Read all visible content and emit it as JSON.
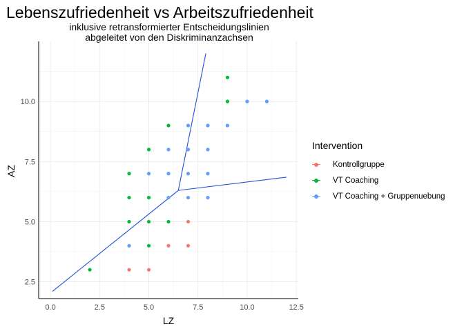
{
  "chart_data": {
    "type": "scatter",
    "title": "Lebenszufriedenheit vs Arbeitszufriedenheit",
    "subtitle_lines": [
      "inklusive retransformierter Entscheidungslinien",
      "abgeleitet von den Diskriminanzachsen"
    ],
    "xlabel": "LZ",
    "ylabel": "AZ",
    "xlim": [
      -0.6,
      12.6
    ],
    "ylim": [
      1.8,
      12.5
    ],
    "x_ticks": [
      0.0,
      2.5,
      5.0,
      7.5,
      10.0,
      12.5
    ],
    "x_tick_labels": [
      "0.0",
      "2.5",
      "5.0",
      "7.5",
      "10.0",
      "12.5"
    ],
    "y_ticks": [
      2.5,
      5.0,
      7.5,
      10.0
    ],
    "y_tick_labels": [
      "2.5",
      "5.0",
      "7.5",
      "10.0"
    ],
    "grid": true,
    "legend_placement": "right",
    "legend_title": "Intervention",
    "series": [
      {
        "name": "Kontrollgruppe",
        "color": "#F8766D",
        "points": [
          [
            4,
            3
          ],
          [
            5,
            3
          ],
          [
            6,
            4
          ],
          [
            7,
            4
          ],
          [
            7,
            5
          ]
        ]
      },
      {
        "name": "VT Coaching",
        "color": "#00BA38",
        "points": [
          [
            2,
            3
          ],
          [
            4,
            5
          ],
          [
            4,
            6
          ],
          [
            4,
            7
          ],
          [
            5,
            4
          ],
          [
            5,
            5
          ],
          [
            5,
            6
          ],
          [
            5,
            8
          ],
          [
            6,
            5
          ],
          [
            6,
            9
          ],
          [
            9,
            10
          ],
          [
            9,
            11
          ]
        ]
      },
      {
        "name": "VT Coaching + Gruppenuebung",
        "color": "#619CFF",
        "points": [
          [
            4,
            4
          ],
          [
            5,
            7
          ],
          [
            6,
            6
          ],
          [
            6,
            7
          ],
          [
            6,
            8
          ],
          [
            7,
            6
          ],
          [
            7,
            7
          ],
          [
            7,
            8
          ],
          [
            7,
            9
          ],
          [
            8,
            6
          ],
          [
            8,
            7
          ],
          [
            8,
            8
          ],
          [
            8,
            9
          ],
          [
            9,
            9
          ],
          [
            10,
            10
          ],
          [
            11,
            10
          ]
        ]
      }
    ],
    "decision_lines": {
      "color": "#1E4FD8",
      "segments": [
        [
          [
            0.1,
            2.1
          ],
          [
            6.5,
            6.3
          ]
        ],
        [
          [
            6.5,
            6.3
          ],
          [
            7.9,
            12.0
          ]
        ],
        [
          [
            6.5,
            6.3
          ],
          [
            12.0,
            6.85
          ]
        ]
      ]
    }
  }
}
